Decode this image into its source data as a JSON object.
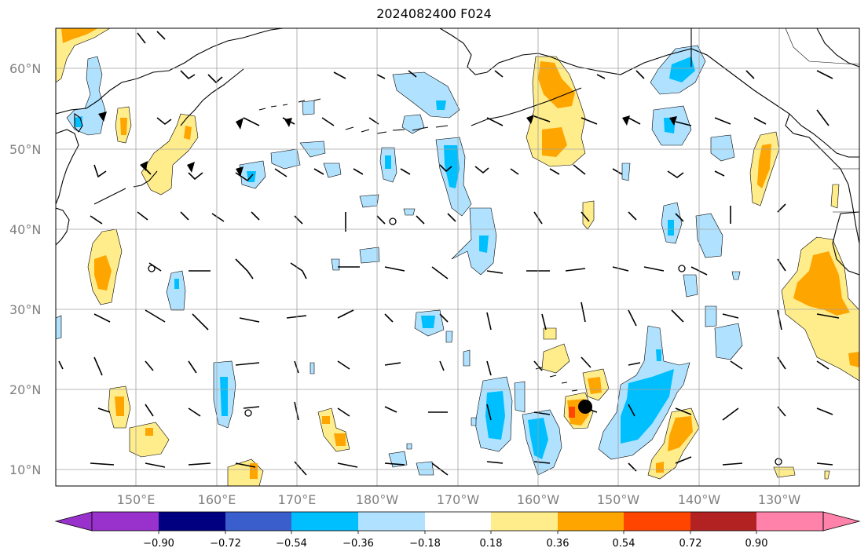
{
  "title": "2024082400 F024",
  "latitude_labels": [
    "60°N",
    "50°N",
    "40°N",
    "30°N",
    "20°N",
    "10°N"
  ],
  "longitude_labels": [
    "150°E",
    "160°E",
    "170°E",
    "180°W",
    "170°W",
    "160°W",
    "150°W",
    "140°W",
    "130°W"
  ],
  "colorbar": {
    "tick_labels": [
      "−0.90",
      "−0.72",
      "−0.54",
      "−0.36",
      "−0.18",
      "0.18",
      "0.36",
      "0.54",
      "0.72",
      "0.90"
    ],
    "colors": [
      "#9932cc",
      "#000080",
      "#3a5fcd",
      "#00bfff",
      "#b0e2ff",
      "#ffffff",
      "#ffec8b",
      "#ffa500",
      "#ff4500",
      "#b22222",
      "#ff82ab",
      "#ff82ab"
    ]
  },
  "legend_colors": {
    "light_blue": "#b0e2ff",
    "blue": "#00bfff",
    "light_yellow": "#ffec8b",
    "orange": "#ffa500",
    "red": "#ff4500"
  }
}
